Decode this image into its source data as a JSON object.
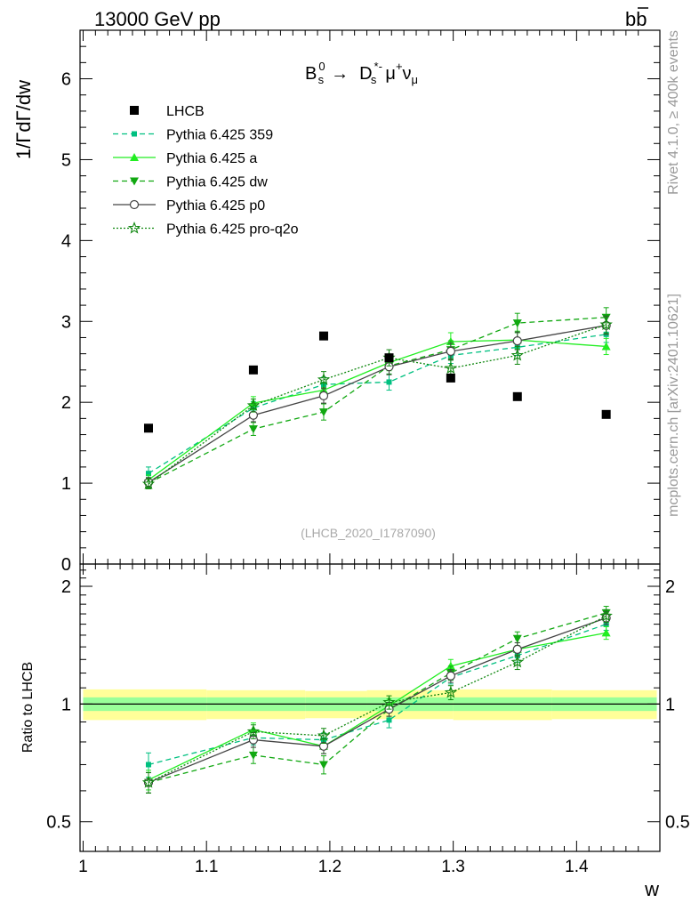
{
  "header": {
    "left": "13000 GeV pp",
    "right": "b",
    "right_overline": "b"
  },
  "side_text": {
    "rivet": "Rivet 4.1.0, ≥ 400k events",
    "mcplots": "mcplots.cern.ch [arXiv:2401.10621]"
  },
  "chart_data": {
    "type": "line",
    "title": "B_s^0 → D_s^*- μ+ ν_μ",
    "title_parts": {
      "b": "B",
      "b_sup": "0",
      "b_sub": "s",
      "arrow": "→",
      "d": "D",
      "d_sup": "*-",
      "d_sub": "s",
      "mu": "μ",
      "mu_sup": "+",
      "nu": "ν",
      "nu_sub": "μ"
    },
    "analysis_label": "(LHCB_2020_I1787090)",
    "xlabel": "w",
    "ylabel_main": "1/ΓdΓ/dw",
    "ylabel_ratio": "Ratio to LHCB",
    "xlim": [
      0.9975,
      1.4675
    ],
    "ylim_main": [
      0,
      6.6
    ],
    "ylim_ratio": [
      0.42,
      2.28
    ],
    "x_ticks": [
      1,
      1.1,
      1.2,
      1.3,
      1.4
    ],
    "x_tick_labels": [
      "1",
      "1.1",
      "1.2",
      "1.3",
      "1.4"
    ],
    "main_y_ticks": [
      0,
      1,
      2,
      3,
      4,
      5,
      6
    ],
    "main_y_tick_labels": [
      "0",
      "1",
      "2",
      "3",
      "4",
      "5",
      "6"
    ],
    "ratio_y_ticks": [
      0.5,
      1,
      2
    ],
    "ratio_y_tick_labels": [
      "0.5",
      "1",
      "2"
    ],
    "bin_edges": [
      1.0,
      1.1,
      1.18,
      1.23,
      1.3,
      1.38,
      1.465
    ],
    "x": [
      1.053,
      1.138,
      1.195,
      1.248,
      1.298,
      1.352,
      1.424
    ],
    "data": {
      "name": "LHCB",
      "values": [
        1.68,
        2.4,
        2.82,
        2.55,
        2.3,
        2.07,
        1.85
      ],
      "band_inner": [
        0.04,
        0.04,
        0.04,
        0.04,
        0.04,
        0.04,
        0.04
      ],
      "band_outer": [
        0.09,
        0.085,
        0.08,
        0.085,
        0.09,
        0.085,
        0.09
      ]
    },
    "legend_position": "top-left",
    "series": [
      {
        "name": "Pythia 6.425 359",
        "color": "#00c080",
        "dash": "6,4",
        "marker": "square-small",
        "values": [
          1.12,
          1.93,
          2.22,
          2.25,
          2.58,
          2.68,
          2.84
        ],
        "errors": [
          0.08,
          0.08,
          0.09,
          0.1,
          0.1,
          0.1,
          0.1
        ],
        "ratio": [
          0.7,
          0.82,
          0.81,
          0.91,
          1.17,
          1.33,
          1.6
        ]
      },
      {
        "name": "Pythia 6.425 a",
        "color": "#22ee22",
        "dash": "",
        "marker": "triangle-up",
        "values": [
          1.04,
          1.99,
          2.15,
          2.49,
          2.75,
          2.77,
          2.69
        ],
        "errors": [
          0.06,
          0.08,
          0.09,
          0.1,
          0.11,
          0.11,
          0.1
        ],
        "ratio": [
          0.64,
          0.86,
          0.78,
          0.99,
          1.25,
          1.38,
          1.52
        ]
      },
      {
        "name": "Pythia 6.425 dw",
        "color": "#11a811",
        "dash": "6,4",
        "marker": "triangle-down",
        "values": [
          1.0,
          1.67,
          1.88,
          2.45,
          2.65,
          2.98,
          3.05
        ],
        "errors": [
          0.06,
          0.08,
          0.1,
          0.1,
          0.11,
          0.12,
          0.12
        ],
        "ratio": [
          0.63,
          0.74,
          0.7,
          0.97,
          1.2,
          1.47,
          1.71
        ]
      },
      {
        "name": "Pythia 6.425 p0",
        "color": "#444444",
        "dash": "",
        "marker": "circle-open",
        "values": [
          1.01,
          1.84,
          2.08,
          2.44,
          2.63,
          2.76,
          2.95
        ],
        "errors": [
          0.06,
          0.08,
          0.09,
          0.1,
          0.1,
          0.11,
          0.11
        ],
        "ratio": [
          0.63,
          0.81,
          0.78,
          0.97,
          1.18,
          1.38,
          1.66
        ]
      },
      {
        "name": "Pythia 6.425 pro-q2o",
        "color": "#118811",
        "dash": "2,2",
        "marker": "star-open",
        "values": [
          0.99,
          1.96,
          2.28,
          2.55,
          2.42,
          2.58,
          2.96
        ],
        "errors": [
          0.06,
          0.08,
          0.1,
          0.1,
          0.1,
          0.11,
          0.11
        ],
        "ratio": [
          0.63,
          0.85,
          0.83,
          1.01,
          1.07,
          1.28,
          1.68
        ]
      }
    ]
  }
}
